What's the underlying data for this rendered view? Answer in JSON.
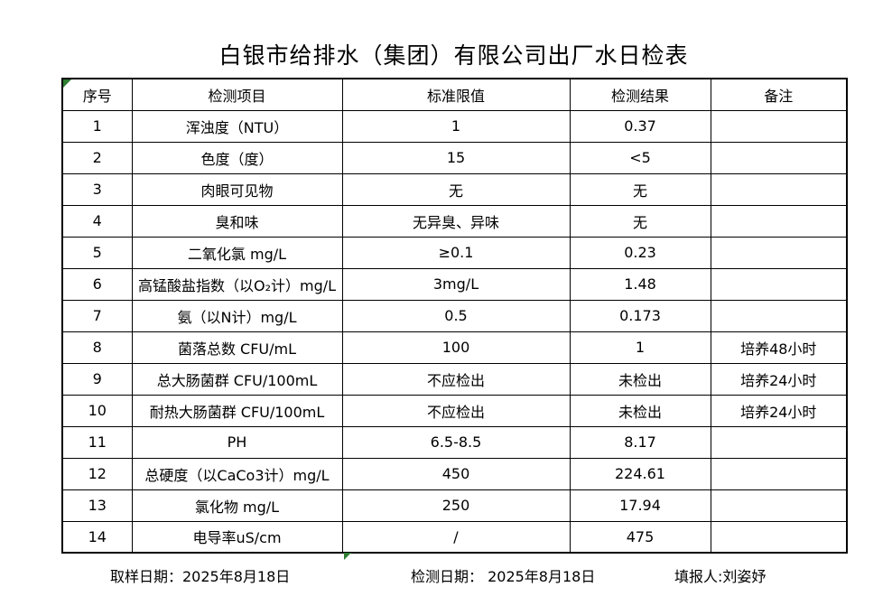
{
  "title": "白银市给排水（集团）有限公司出厂水日检表",
  "table": {
    "headers": [
      "序号",
      "检测项目",
      "标准限值",
      "检测结果",
      "备注"
    ],
    "rows": [
      {
        "no": "1",
        "item": "浑浊度（NTU）",
        "limit": "1",
        "result": "0.37",
        "remark": ""
      },
      {
        "no": "2",
        "item": "色度（度）",
        "limit": "15",
        "result": "<5",
        "remark": ""
      },
      {
        "no": "3",
        "item": "肉眼可见物",
        "limit": "无",
        "result": "无",
        "remark": ""
      },
      {
        "no": "4",
        "item": "臭和味",
        "limit": "无异臭、异味",
        "result": "无",
        "remark": ""
      },
      {
        "no": "5",
        "item": "二氧化氯 mg/L",
        "limit": "≥0.1",
        "result": "0.23",
        "remark": ""
      },
      {
        "no": "6",
        "item": "高锰酸盐指数（以O₂计）mg/L",
        "limit": "3mg/L",
        "result": "1.48",
        "remark": ""
      },
      {
        "no": "7",
        "item": "氨（以N计）mg/L",
        "limit": "0.5",
        "result": "0.173",
        "remark": ""
      },
      {
        "no": "8",
        "item": "菌落总数 CFU/mL",
        "limit": "100",
        "result": "1",
        "remark": "培养48小时"
      },
      {
        "no": "9",
        "item": "总大肠菌群 CFU/100mL",
        "limit": "不应检出",
        "result": "未检出",
        "remark": "培养24小时"
      },
      {
        "no": "10",
        "item": "耐热大肠菌群 CFU/100mL",
        "limit": "不应检出",
        "result": "未检出",
        "remark": "培养24小时"
      },
      {
        "no": "11",
        "item": "PH",
        "limit": "6.5-8.5",
        "result": "8.17",
        "remark": ""
      },
      {
        "no": "12",
        "item": "总硬度（以CaCo3计）mg/L",
        "limit": "450",
        "result": "224.61",
        "remark": ""
      },
      {
        "no": "13",
        "item": "氯化物 mg/L",
        "limit": "250",
        "result": "17.94",
        "remark": ""
      },
      {
        "no": "14",
        "item": "电导率uS/cm",
        "limit": "/",
        "result": "475",
        "remark": ""
      }
    ]
  },
  "footer": {
    "sampling_date": "取样日期：2025年8月18日",
    "test_date": "检测日期： 2025年8月18日",
    "reporter": "填报人:刘姿妤"
  },
  "markers": {
    "triangle_color": "#2E7D32"
  }
}
